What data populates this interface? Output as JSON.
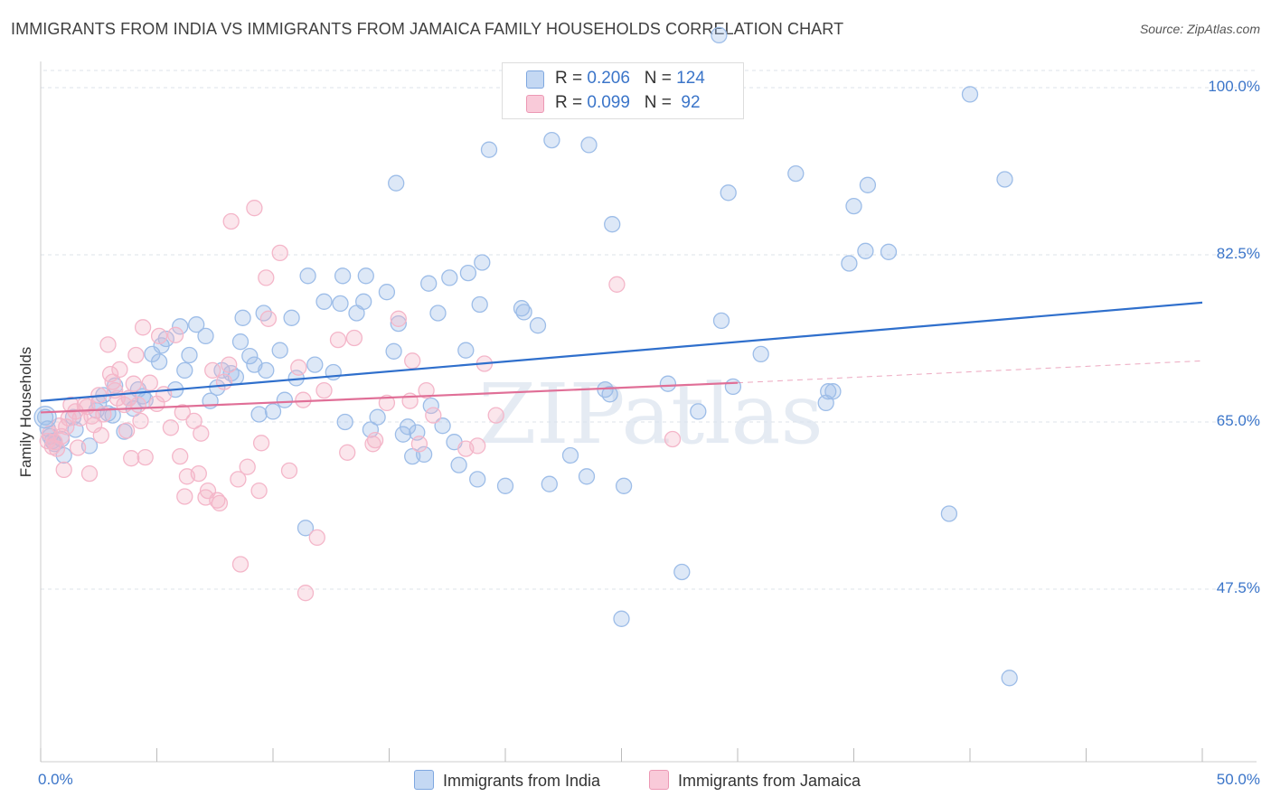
{
  "chart_data": {
    "type": "scatter",
    "title": "IMMIGRANTS FROM INDIA VS IMMIGRANTS FROM JAMAICA FAMILY HOUSEHOLDS CORRELATION CHART",
    "source": "Source: ZipAtlas.com",
    "xlabel": "",
    "ylabel": "Family Households",
    "xlim": [
      0,
      50
    ],
    "ylim": [
      30,
      102
    ],
    "x_tick_labels": [
      "0.0%",
      "50.0%"
    ],
    "y_ticks": [
      47.5,
      65.0,
      82.5,
      100.0
    ],
    "y_tick_labels": [
      "47.5%",
      "65.0%",
      "82.5%",
      "100.0%"
    ],
    "grid": true,
    "watermark": "ZIPatlas",
    "legend": {
      "position": "top-center",
      "rows": [
        {
          "r_label": "R = ",
          "r_value": "0.206",
          "n_label": "N = ",
          "n_value": "124"
        },
        {
          "r_label": "R = ",
          "r_value": "0.099",
          "n_label": "N = ",
          "n_value": " 92"
        }
      ]
    },
    "series": [
      {
        "name": "Immigrants from India",
        "color": "#9dbde8",
        "line_color": "#2f6fcc",
        "r": 0.206,
        "n": 124,
        "trend": {
          "x0": 0,
          "y0": 67.2,
          "x1": 50,
          "y1": 77.5
        },
        "points": [
          [
            0.2,
            65.5
          ],
          [
            0.3,
            64.3
          ],
          [
            0.4,
            63.5
          ],
          [
            0.5,
            63.0
          ],
          [
            0.6,
            62.7
          ],
          [
            0.9,
            63.2
          ],
          [
            1.0,
            61.5
          ],
          [
            1.4,
            65.5
          ],
          [
            1.5,
            64.2
          ],
          [
            2.1,
            62.5
          ],
          [
            2.4,
            66.2
          ],
          [
            2.5,
            67.0
          ],
          [
            2.7,
            67.8
          ],
          [
            2.9,
            65.9
          ],
          [
            3.1,
            65.7
          ],
          [
            3.2,
            68.8
          ],
          [
            3.6,
            64.0
          ],
          [
            3.8,
            67.5
          ],
          [
            4.0,
            66.4
          ],
          [
            4.2,
            68.4
          ],
          [
            4.4,
            67.7
          ],
          [
            4.5,
            67.3
          ],
          [
            4.8,
            72.1
          ],
          [
            5.1,
            71.3
          ],
          [
            5.2,
            73.0
          ],
          [
            5.4,
            73.7
          ],
          [
            5.8,
            68.4
          ],
          [
            6.0,
            75.0
          ],
          [
            6.2,
            70.4
          ],
          [
            6.4,
            72.0
          ],
          [
            6.7,
            75.2
          ],
          [
            7.1,
            74.0
          ],
          [
            7.3,
            67.2
          ],
          [
            7.6,
            68.6
          ],
          [
            7.8,
            70.4
          ],
          [
            8.2,
            70.1
          ],
          [
            8.4,
            69.7
          ],
          [
            8.6,
            73.4
          ],
          [
            8.7,
            75.9
          ],
          [
            9.0,
            71.9
          ],
          [
            9.2,
            71.0
          ],
          [
            9.4,
            65.8
          ],
          [
            9.6,
            76.4
          ],
          [
            9.7,
            70.4
          ],
          [
            10.0,
            66.1
          ],
          [
            10.3,
            72.5
          ],
          [
            10.5,
            67.3
          ],
          [
            10.8,
            75.9
          ],
          [
            11.0,
            69.6
          ],
          [
            11.4,
            53.9
          ],
          [
            11.5,
            80.3
          ],
          [
            11.8,
            71.0
          ],
          [
            12.2,
            77.6
          ],
          [
            12.6,
            70.2
          ],
          [
            12.9,
            77.4
          ],
          [
            13.0,
            80.3
          ],
          [
            13.1,
            65.0
          ],
          [
            13.6,
            76.4
          ],
          [
            13.9,
            77.6
          ],
          [
            14.0,
            80.3
          ],
          [
            14.2,
            64.2
          ],
          [
            14.5,
            65.5
          ],
          [
            14.9,
            78.6
          ],
          [
            15.2,
            72.4
          ],
          [
            15.3,
            90.0
          ],
          [
            15.4,
            75.3
          ],
          [
            15.6,
            63.7
          ],
          [
            15.8,
            64.5
          ],
          [
            16.0,
            61.4
          ],
          [
            16.2,
            63.9
          ],
          [
            16.5,
            61.6
          ],
          [
            16.7,
            79.5
          ],
          [
            16.8,
            66.7
          ],
          [
            17.1,
            76.4
          ],
          [
            17.3,
            64.6
          ],
          [
            17.6,
            80.1
          ],
          [
            17.8,
            62.9
          ],
          [
            18.0,
            60.5
          ],
          [
            18.3,
            72.5
          ],
          [
            18.4,
            80.6
          ],
          [
            18.8,
            59.0
          ],
          [
            18.9,
            77.3
          ],
          [
            19.0,
            81.7
          ],
          [
            19.3,
            93.5
          ],
          [
            20.0,
            58.3
          ],
          [
            20.7,
            76.9
          ],
          [
            20.8,
            76.5
          ],
          [
            21.4,
            75.1
          ],
          [
            21.9,
            58.5
          ],
          [
            22.0,
            94.5
          ],
          [
            22.8,
            61.5
          ],
          [
            23.5,
            59.3
          ],
          [
            23.6,
            94.0
          ],
          [
            24.3,
            68.4
          ],
          [
            24.5,
            67.9
          ],
          [
            24.6,
            85.7
          ],
          [
            25.0,
            44.4
          ],
          [
            25.1,
            58.3
          ],
          [
            27.0,
            69.0
          ],
          [
            27.6,
            49.3
          ],
          [
            28.3,
            66.1
          ],
          [
            29.2,
            105.5
          ],
          [
            29.3,
            75.6
          ],
          [
            29.6,
            89.0
          ],
          [
            29.8,
            68.7
          ],
          [
            31.0,
            72.1
          ],
          [
            32.5,
            91.0
          ],
          [
            33.8,
            67.0
          ],
          [
            33.9,
            68.2
          ],
          [
            34.1,
            68.2
          ],
          [
            34.8,
            81.6
          ],
          [
            35.0,
            87.6
          ],
          [
            35.5,
            82.9
          ],
          [
            35.6,
            89.8
          ],
          [
            36.5,
            82.8
          ],
          [
            39.1,
            55.4
          ],
          [
            40.0,
            99.3
          ],
          [
            41.5,
            90.4
          ],
          [
            41.7,
            38.2
          ]
        ]
      },
      {
        "name": "Immigrants from Jamaica",
        "color": "#f4b6c9",
        "line_color": "#e06f97",
        "r": 0.099,
        "n": 92,
        "trend": {
          "x0": 0,
          "y0": 66.0,
          "x1": 30,
          "y1": 69.1
        },
        "trend_dashed": {
          "x0": 30,
          "y0": 69.1,
          "x1": 50,
          "y1": 71.4
        },
        "points": [
          [
            0.3,
            63.0
          ],
          [
            0.4,
            63.8
          ],
          [
            0.5,
            62.4
          ],
          [
            0.6,
            62.9
          ],
          [
            0.7,
            62.2
          ],
          [
            0.8,
            64.6
          ],
          [
            0.9,
            63.5
          ],
          [
            1.0,
            60.0
          ],
          [
            1.1,
            64.5
          ],
          [
            1.2,
            65.4
          ],
          [
            1.3,
            66.8
          ],
          [
            1.5,
            66.1
          ],
          [
            1.6,
            62.3
          ],
          [
            1.7,
            65.4
          ],
          [
            1.9,
            66.8
          ],
          [
            2.0,
            66.6
          ],
          [
            2.1,
            59.6
          ],
          [
            2.2,
            65.6
          ],
          [
            2.3,
            64.7
          ],
          [
            2.5,
            67.8
          ],
          [
            2.6,
            63.6
          ],
          [
            2.7,
            65.8
          ],
          [
            2.9,
            73.1
          ],
          [
            3.0,
            70.0
          ],
          [
            3.1,
            69.2
          ],
          [
            3.2,
            68.3
          ],
          [
            3.3,
            67.5
          ],
          [
            3.4,
            70.5
          ],
          [
            3.6,
            66.8
          ],
          [
            3.7,
            64.1
          ],
          [
            3.8,
            67.5
          ],
          [
            3.9,
            61.2
          ],
          [
            4.0,
            69.0
          ],
          [
            4.1,
            72.0
          ],
          [
            4.2,
            66.8
          ],
          [
            4.3,
            65.1
          ],
          [
            4.4,
            74.9
          ],
          [
            4.5,
            61.3
          ],
          [
            4.7,
            69.1
          ],
          [
            5.0,
            66.9
          ],
          [
            5.1,
            74.0
          ],
          [
            5.3,
            67.9
          ],
          [
            5.6,
            64.4
          ],
          [
            5.8,
            74.1
          ],
          [
            6.0,
            61.4
          ],
          [
            6.1,
            66.0
          ],
          [
            6.2,
            57.2
          ],
          [
            6.3,
            59.3
          ],
          [
            6.6,
            65.1
          ],
          [
            6.8,
            59.6
          ],
          [
            6.9,
            63.8
          ],
          [
            7.1,
            57.1
          ],
          [
            7.2,
            57.8
          ],
          [
            7.4,
            70.4
          ],
          [
            7.6,
            56.8
          ],
          [
            7.7,
            56.5
          ],
          [
            7.9,
            69.2
          ],
          [
            8.1,
            71.0
          ],
          [
            8.2,
            86.0
          ],
          [
            8.5,
            59.0
          ],
          [
            8.6,
            50.1
          ],
          [
            8.9,
            60.3
          ],
          [
            9.2,
            87.4
          ],
          [
            9.4,
            57.8
          ],
          [
            9.5,
            62.8
          ],
          [
            9.7,
            80.1
          ],
          [
            9.8,
            75.8
          ],
          [
            10.3,
            82.7
          ],
          [
            10.7,
            59.9
          ],
          [
            11.1,
            70.7
          ],
          [
            11.3,
            67.3
          ],
          [
            11.4,
            47.1
          ],
          [
            11.9,
            52.9
          ],
          [
            12.2,
            68.3
          ],
          [
            12.8,
            73.6
          ],
          [
            13.2,
            61.8
          ],
          [
            13.5,
            73.8
          ],
          [
            14.3,
            62.7
          ],
          [
            14.4,
            63.1
          ],
          [
            14.9,
            67.0
          ],
          [
            15.4,
            75.8
          ],
          [
            15.9,
            67.2
          ],
          [
            16.0,
            71.4
          ],
          [
            16.3,
            62.7
          ],
          [
            16.6,
            68.3
          ],
          [
            16.9,
            65.7
          ],
          [
            18.3,
            62.2
          ],
          [
            18.8,
            62.5
          ],
          [
            19.1,
            71.1
          ],
          [
            19.6,
            65.7
          ],
          [
            24.8,
            79.4
          ],
          [
            27.2,
            63.2
          ]
        ]
      }
    ]
  },
  "bottom_legend": {
    "india_label": "Immigrants from India",
    "jamaica_label": "Immigrants from Jamaica"
  }
}
